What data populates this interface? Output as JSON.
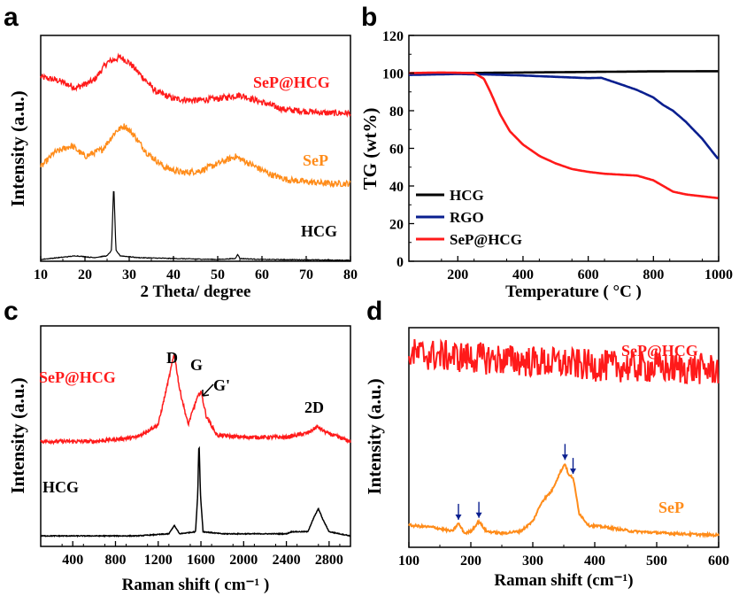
{
  "chart_data": [
    {
      "panel": "a",
      "type": "line",
      "xlabel": "2 Theta/ degree",
      "ylabel": "Intensity (a.u.)",
      "xlim": [
        10,
        80
      ],
      "xticks": [
        10,
        20,
        30,
        40,
        50,
        60,
        70,
        80
      ],
      "y_ticks_shown": false,
      "series": [
        {
          "name": "SeP@HCG",
          "color": "#ff1a1a",
          "offset": 0.8,
          "x": [
            10,
            14,
            18,
            22,
            25,
            28,
            30,
            33,
            36,
            40,
            45,
            50,
            55,
            60,
            65,
            70,
            75,
            80
          ],
          "y": [
            0.22,
            0.2,
            0.16,
            0.2,
            0.3,
            0.33,
            0.3,
            0.22,
            0.14,
            0.1,
            0.09,
            0.1,
            0.12,
            0.08,
            0.04,
            0.03,
            0.02,
            0.02
          ]
        },
        {
          "name": "SeP",
          "color": "#ff8c1a",
          "offset": 0.4,
          "x": [
            10,
            13,
            17,
            20,
            24,
            27,
            29,
            31,
            34,
            38,
            42,
            46,
            50,
            54,
            58,
            62,
            66,
            70,
            75,
            80
          ],
          "y": [
            0.12,
            0.2,
            0.24,
            0.18,
            0.22,
            0.32,
            0.35,
            0.3,
            0.2,
            0.12,
            0.09,
            0.1,
            0.14,
            0.18,
            0.13,
            0.08,
            0.05,
            0.04,
            0.03,
            0.03
          ]
        },
        {
          "name": "HCG",
          "color": "#000000",
          "offset": 0.0,
          "x": [
            10,
            14,
            18,
            22,
            25,
            26,
            26.5,
            27,
            28,
            32,
            40,
            50,
            54,
            54.5,
            55,
            60,
            70,
            80
          ],
          "y": [
            0.01,
            0.02,
            0.03,
            0.02,
            0.03,
            0.06,
            0.43,
            0.06,
            0.03,
            0.02,
            0.015,
            0.01,
            0.015,
            0.04,
            0.015,
            0.01,
            0.008,
            0.005
          ]
        }
      ]
    },
    {
      "panel": "b",
      "type": "line",
      "xlabel": "Temperature ( °C )",
      "ylabel": "TG (wt%)",
      "xlim": [
        50,
        1000
      ],
      "ylim": [
        0,
        120
      ],
      "xticks": [
        200,
        400,
        600,
        800,
        1000
      ],
      "yticks": [
        0,
        20,
        40,
        60,
        80,
        100,
        120
      ],
      "legend": "bottom-left",
      "series": [
        {
          "name": "HCG",
          "color": "#000000",
          "x": [
            50,
            200,
            400,
            600,
            800,
            1000
          ],
          "y": [
            99.5,
            100,
            100.3,
            100.6,
            100.9,
            101
          ]
        },
        {
          "name": "RGO",
          "color": "#0a1f8f",
          "x": [
            50,
            200,
            300,
            400,
            500,
            600,
            640,
            700,
            750,
            800,
            830,
            860,
            900,
            950,
            1000
          ],
          "y": [
            99,
            99.5,
            99.2,
            98.7,
            98,
            97.3,
            97.5,
            94,
            91,
            87,
            83,
            80,
            74,
            65,
            54
          ]
        },
        {
          "name": "SeP@HCG",
          "color": "#ff1a1a",
          "x": [
            50,
            150,
            250,
            280,
            300,
            330,
            360,
            400,
            450,
            500,
            550,
            600,
            650,
            700,
            750,
            800,
            830,
            860,
            900,
            950,
            1000
          ],
          "y": [
            100,
            100.3,
            100,
            97,
            90,
            78,
            69,
            62,
            56,
            52,
            49,
            47.5,
            46.5,
            46,
            45.5,
            43,
            40,
            37,
            35.5,
            34.5,
            33.5
          ]
        }
      ]
    },
    {
      "panel": "c",
      "type": "line",
      "xlabel": "Raman shift ( cm⁻¹ )",
      "ylabel": "Intensity (a.u.)",
      "xlim": [
        100,
        3000
      ],
      "xticks": [
        400,
        800,
        1200,
        1600,
        2000,
        2400,
        2800
      ],
      "y_ticks_shown": false,
      "annotations": [
        "D",
        "G",
        "G'",
        "2D"
      ],
      "series": [
        {
          "name": "SeP@HCG",
          "color": "#ff1a1a",
          "offset": 0.45,
          "x": [
            100,
            600,
            1000,
            1200,
            1300,
            1350,
            1400,
            1480,
            1560,
            1600,
            1650,
            1750,
            2000,
            2400,
            2600,
            2690,
            2780,
            3000
          ],
          "y": [
            0.0,
            0.0,
            0.02,
            0.08,
            0.3,
            0.42,
            0.25,
            0.08,
            0.2,
            0.24,
            0.12,
            0.03,
            0.02,
            0.02,
            0.04,
            0.07,
            0.04,
            0.0
          ]
        },
        {
          "name": "HCG",
          "color": "#000000",
          "offset": 0.0,
          "x": [
            100,
            1000,
            1300,
            1350,
            1400,
            1550,
            1570,
            1582,
            1595,
            1620,
            1800,
            2400,
            2450,
            2600,
            2660,
            2700,
            2740,
            2800,
            3000
          ],
          "y": [
            0.0,
            0.0,
            0.01,
            0.05,
            0.01,
            0.02,
            0.2,
            0.46,
            0.2,
            0.02,
            0.01,
            0.01,
            0.02,
            0.02,
            0.09,
            0.13,
            0.08,
            0.02,
            0.0
          ]
        }
      ]
    },
    {
      "panel": "d",
      "type": "line",
      "xlabel": "Raman shift (cm⁻¹)",
      "ylabel": "Intensity (a.u.)",
      "xlim": [
        100,
        600
      ],
      "xticks": [
        100,
        200,
        300,
        400,
        500,
        600
      ],
      "y_ticks_shown": false,
      "arrows_at": [
        180,
        213,
        352,
        365
      ],
      "series": [
        {
          "name": "SeP@HCG",
          "color": "#ff1a1a",
          "offset": 0.6,
          "noisy": true,
          "x": [
            100,
            200,
            300,
            400,
            500,
            600
          ],
          "y": [
            0.32,
            0.3,
            0.28,
            0.26,
            0.25,
            0.24
          ]
        },
        {
          "name": "SeP",
          "color": "#ff8c1a",
          "offset": 0.0,
          "x": [
            100,
            140,
            170,
            180,
            190,
            200,
            213,
            225,
            250,
            280,
            300,
            315,
            330,
            345,
            352,
            358,
            365,
            375,
            390,
            420,
            460,
            520,
            600
          ],
          "y": [
            0.06,
            0.05,
            0.03,
            0.07,
            0.02,
            0.03,
            0.08,
            0.03,
            0.02,
            0.03,
            0.08,
            0.18,
            0.23,
            0.33,
            0.37,
            0.31,
            0.3,
            0.12,
            0.06,
            0.05,
            0.03,
            0.02,
            0.01
          ]
        }
      ]
    }
  ],
  "labels": {
    "panel_a": "a",
    "panel_b": "b",
    "panel_c": "c",
    "panel_d": "d",
    "a_sepahcg": "SeP@HCG",
    "a_sep": "SeP",
    "a_hcg": "HCG",
    "c_sepahcg": "SeP@HCG",
    "c_hcg": "HCG",
    "c_D": "D",
    "c_G": "G",
    "c_Gp": "G'",
    "c_2D": "2D",
    "d_sepahcg": "SeP@HCG",
    "d_sep": "SeP",
    "legend_hcg": "HCG",
    "legend_rgo": "RGO",
    "legend_sepahcg": "SeP@HCG"
  }
}
